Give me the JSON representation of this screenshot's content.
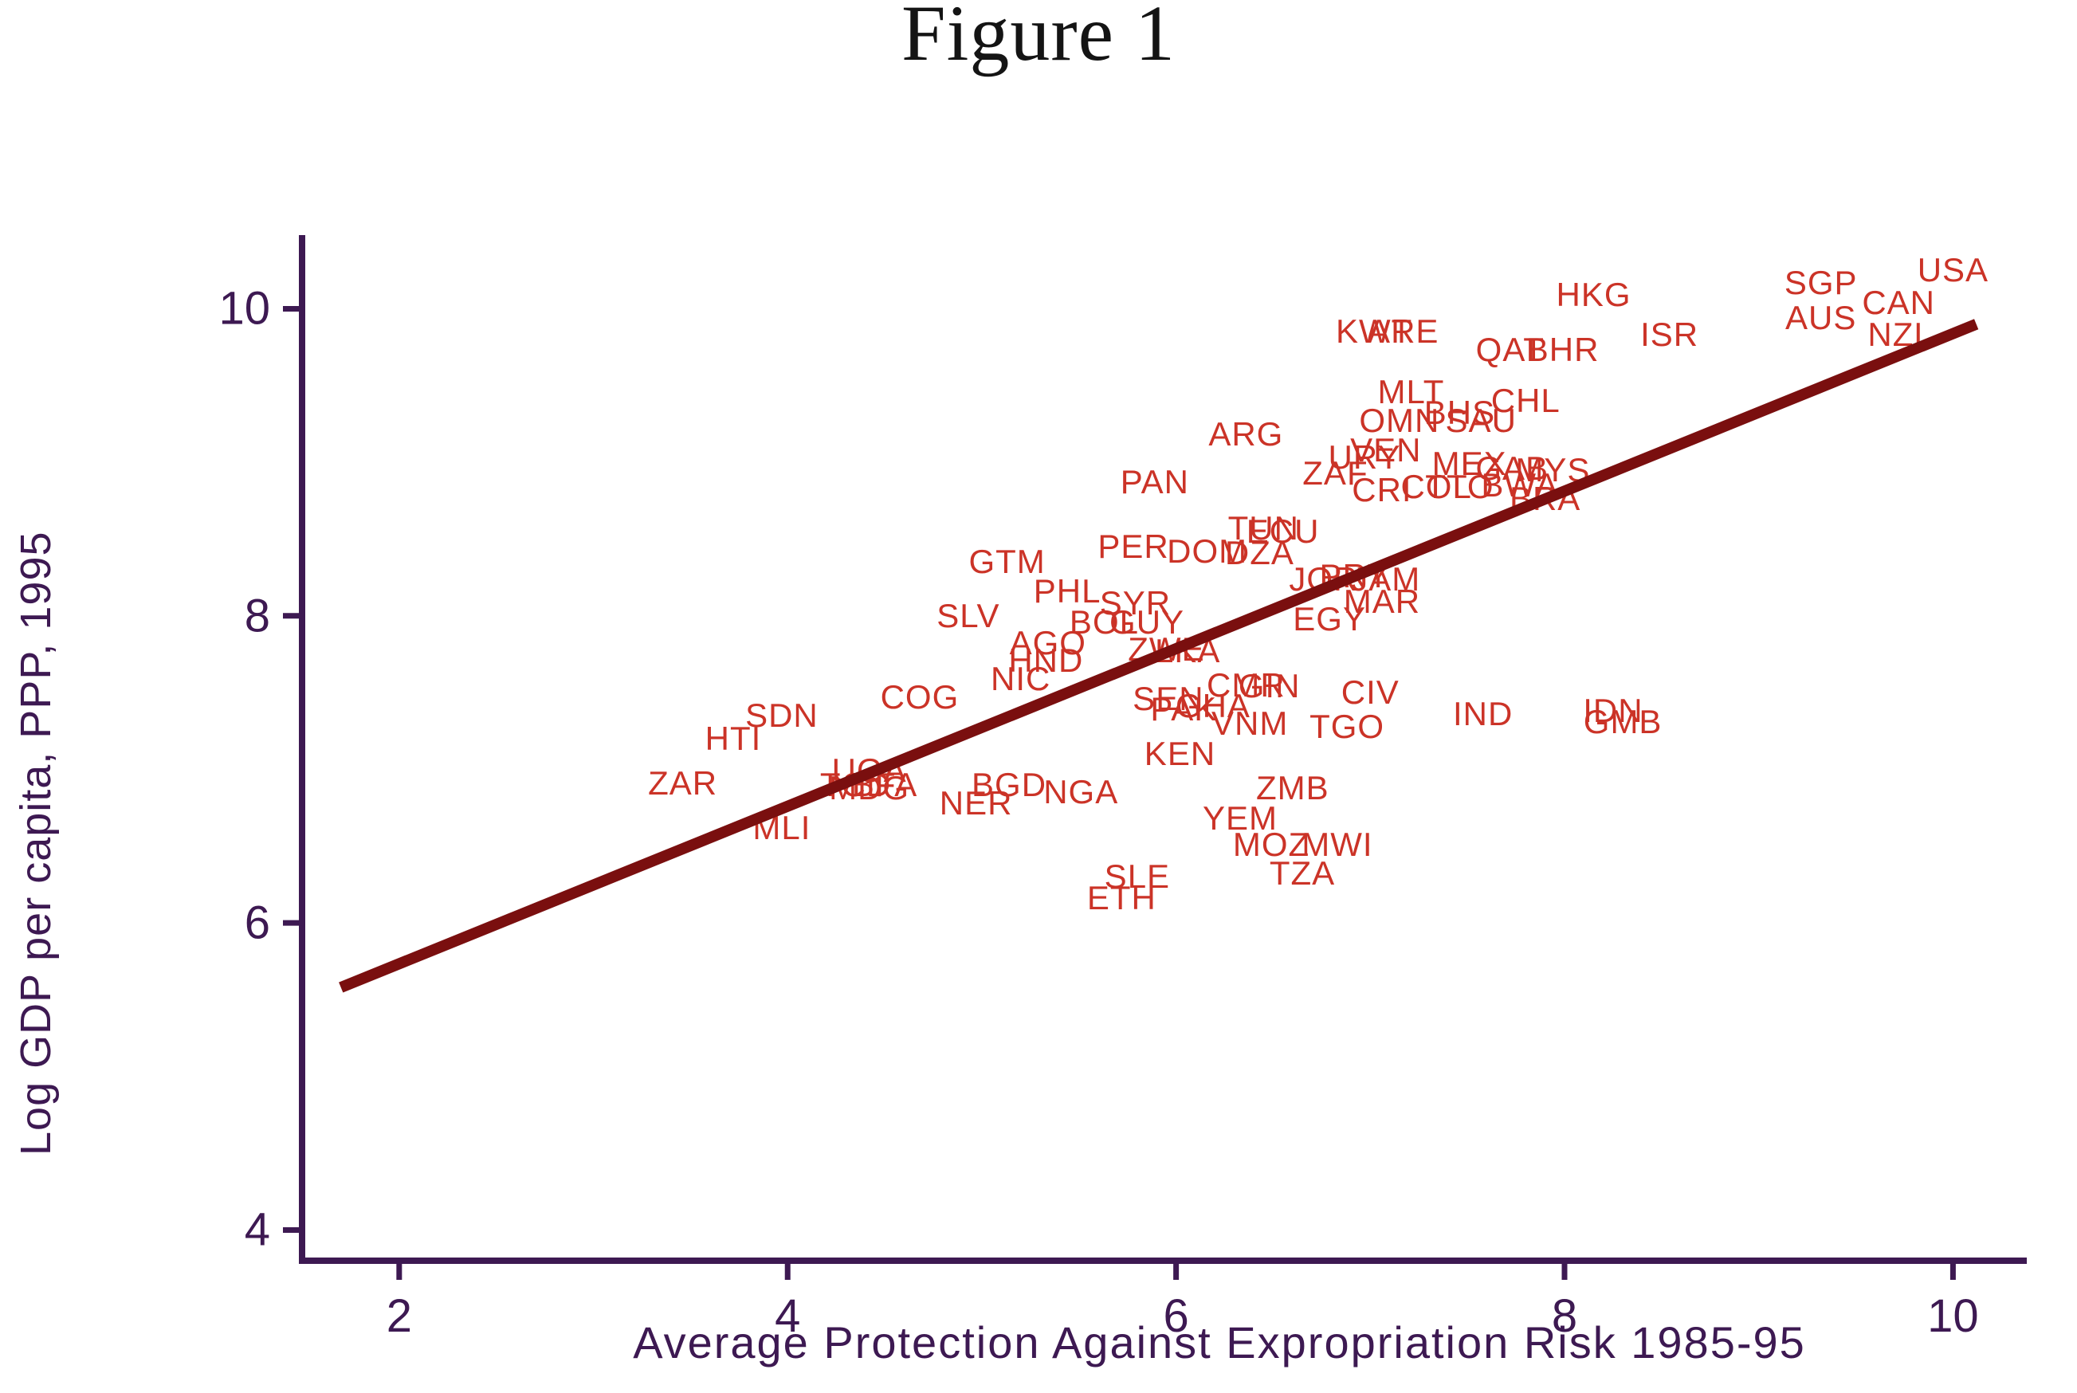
{
  "chart_data": {
    "type": "scatter",
    "title": "Figure 1",
    "xlabel": "Average Protection Against Expropriation Risk 1985-95",
    "ylabel": "Log GDP per capita, PPP, 1995",
    "xlim": [
      1.5,
      10.38
    ],
    "ylim": [
      3.8,
      10.48
    ],
    "x_ticks": [
      2,
      4,
      6,
      8,
      10
    ],
    "y_ticks": [
      4,
      6,
      8,
      10
    ],
    "grid": false,
    "legend": false,
    "marker_style": "country-code text labels",
    "colors": {
      "label": "#cb3327",
      "trendline": "#7a0f0f",
      "axis": "#3d1952",
      "title": "#141414"
    },
    "trendline": {
      "type": "linear-fit",
      "x1": 1.7,
      "y1": 5.58,
      "x2": 10.12,
      "y2": 9.9,
      "slope": 0.51,
      "intercept": 4.71
    },
    "points": [
      {
        "label": "USA",
        "x": 10.0,
        "y": 10.25
      },
      {
        "label": "SGP",
        "x": 9.32,
        "y": 10.17
      },
      {
        "label": "CAN",
        "x": 9.72,
        "y": 10.04
      },
      {
        "label": "AUS",
        "x": 9.32,
        "y": 9.94
      },
      {
        "label": "NZL",
        "x": 9.73,
        "y": 9.83
      },
      {
        "label": "HKG",
        "x": 8.15,
        "y": 10.09
      },
      {
        "label": "ISR",
        "x": 8.54,
        "y": 9.83
      },
      {
        "label": "KWT",
        "x": 7.02,
        "y": 9.85
      },
      {
        "label": "ARE",
        "x": 7.17,
        "y": 9.85
      },
      {
        "label": "QAT",
        "x": 7.72,
        "y": 9.73
      },
      {
        "label": "BHR",
        "x": 7.99,
        "y": 9.73
      },
      {
        "label": "MLT",
        "x": 7.21,
        "y": 9.46
      },
      {
        "label": "OMN",
        "x": 7.15,
        "y": 9.27
      },
      {
        "label": "BHS",
        "x": 7.46,
        "y": 9.32
      },
      {
        "label": "SAU",
        "x": 7.57,
        "y": 9.27
      },
      {
        "label": "CHL",
        "x": 7.8,
        "y": 9.4
      },
      {
        "label": "ARG",
        "x": 6.36,
        "y": 9.18
      },
      {
        "label": "VEN",
        "x": 7.08,
        "y": 9.08
      },
      {
        "label": "URY",
        "x": 6.97,
        "y": 9.03
      },
      {
        "label": "MEX",
        "x": 7.51,
        "y": 8.99
      },
      {
        "label": "GAB",
        "x": 7.73,
        "y": 8.96
      },
      {
        "label": "MYS",
        "x": 7.94,
        "y": 8.95
      },
      {
        "label": "ZAF",
        "x": 6.82,
        "y": 8.93
      },
      {
        "label": "PAN",
        "x": 5.89,
        "y": 8.87
      },
      {
        "label": "CRI",
        "x": 7.06,
        "y": 8.82
      },
      {
        "label": "COL",
        "x": 7.34,
        "y": 8.84
      },
      {
        "label": "TTO",
        "x": 7.46,
        "y": 8.84
      },
      {
        "label": "BWA",
        "x": 7.77,
        "y": 8.85
      },
      {
        "label": "BRA",
        "x": 7.9,
        "y": 8.76
      },
      {
        "label": "TUN",
        "x": 6.45,
        "y": 8.57
      },
      {
        "label": "ECU",
        "x": 6.55,
        "y": 8.55
      },
      {
        "label": "PER",
        "x": 5.78,
        "y": 8.45
      },
      {
        "label": "DOM",
        "x": 6.16,
        "y": 8.42
      },
      {
        "label": "DZA",
        "x": 6.43,
        "y": 8.41
      },
      {
        "label": "GTM",
        "x": 5.13,
        "y": 8.35
      },
      {
        "label": "JOR",
        "x": 6.76,
        "y": 8.24
      },
      {
        "label": "PRY",
        "x": 6.92,
        "y": 8.26
      },
      {
        "label": "JAM",
        "x": 7.08,
        "y": 8.24
      },
      {
        "label": "MAR",
        "x": 7.06,
        "y": 8.09
      },
      {
        "label": "PHL",
        "x": 5.44,
        "y": 8.16
      },
      {
        "label": "SYR",
        "x": 5.79,
        "y": 8.08
      },
      {
        "label": "SLV",
        "x": 4.93,
        "y": 8.0
      },
      {
        "label": "EGY",
        "x": 6.79,
        "y": 7.98
      },
      {
        "label": "BOL",
        "x": 5.63,
        "y": 7.96
      },
      {
        "label": "GUY",
        "x": 5.85,
        "y": 7.96
      },
      {
        "label": "AGO",
        "x": 5.34,
        "y": 7.82
      },
      {
        "label": "HND",
        "x": 5.33,
        "y": 7.71
      },
      {
        "label": "ZWE",
        "x": 5.95,
        "y": 7.78
      },
      {
        "label": "LKA",
        "x": 6.06,
        "y": 7.77
      },
      {
        "label": "NIC",
        "x": 5.2,
        "y": 7.59
      },
      {
        "label": "CMR",
        "x": 6.36,
        "y": 7.55
      },
      {
        "label": "GIN",
        "x": 6.48,
        "y": 7.54
      },
      {
        "label": "CIV",
        "x": 7.0,
        "y": 7.5
      },
      {
        "label": "COG",
        "x": 4.68,
        "y": 7.47
      },
      {
        "label": "SEN",
        "x": 5.96,
        "y": 7.46
      },
      {
        "label": "PAK",
        "x": 6.04,
        "y": 7.39
      },
      {
        "label": "GHA",
        "x": 6.19,
        "y": 7.41
      },
      {
        "label": "VNM",
        "x": 6.38,
        "y": 7.3
      },
      {
        "label": "TGO",
        "x": 6.88,
        "y": 7.28
      },
      {
        "label": "IND",
        "x": 7.58,
        "y": 7.36
      },
      {
        "label": "IDN",
        "x": 8.25,
        "y": 7.38
      },
      {
        "label": "GMB",
        "x": 8.3,
        "y": 7.31
      },
      {
        "label": "SDN",
        "x": 3.97,
        "y": 7.35
      },
      {
        "label": "HTI",
        "x": 3.72,
        "y": 7.2
      },
      {
        "label": "KEN",
        "x": 6.02,
        "y": 7.1
      },
      {
        "label": "ZAR",
        "x": 3.46,
        "y": 6.91
      },
      {
        "label": "UGA",
        "x": 4.42,
        "y": 6.99
      },
      {
        "label": "TCD",
        "x": 4.35,
        "y": 6.9
      },
      {
        "label": "MDG",
        "x": 4.42,
        "y": 6.88
      },
      {
        "label": "BFA",
        "x": 4.5,
        "y": 6.9
      },
      {
        "label": "BGD",
        "x": 5.14,
        "y": 6.9
      },
      {
        "label": "NER",
        "x": 4.97,
        "y": 6.78
      },
      {
        "label": "NGA",
        "x": 5.51,
        "y": 6.85
      },
      {
        "label": "MLI",
        "x": 3.97,
        "y": 6.62
      },
      {
        "label": "YEM",
        "x": 6.33,
        "y": 6.68
      },
      {
        "label": "ZMB",
        "x": 6.6,
        "y": 6.88
      },
      {
        "label": "MOZ",
        "x": 6.49,
        "y": 6.51
      },
      {
        "label": "MWI",
        "x": 6.83,
        "y": 6.51
      },
      {
        "label": "TZA",
        "x": 6.65,
        "y": 6.32
      },
      {
        "label": "SLE",
        "x": 5.8,
        "y": 6.3
      },
      {
        "label": "ETH",
        "x": 5.72,
        "y": 6.16
      }
    ]
  }
}
